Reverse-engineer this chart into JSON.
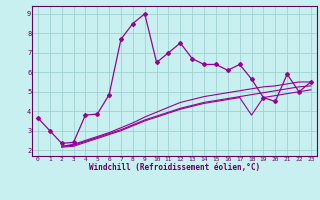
{
  "xlabel": "Windchill (Refroidissement éolien,°C)",
  "bg_color": "#c8f0f0",
  "line_color": "#990099",
  "grid_color": "#99cccc",
  "axis_color": "#660066",
  "spine_color": "#660066",
  "xlim": [
    -0.5,
    23.5
  ],
  "ylim": [
    1.7,
    9.4
  ],
  "yticks": [
    2,
    3,
    4,
    5,
    6,
    7,
    8,
    9
  ],
  "xticks": [
    0,
    1,
    2,
    3,
    4,
    5,
    6,
    7,
    8,
    9,
    10,
    11,
    12,
    13,
    14,
    15,
    16,
    17,
    18,
    19,
    20,
    21,
    22,
    23
  ],
  "line1_x": [
    0,
    1,
    2,
    3,
    4,
    5,
    6,
    7,
    8,
    9,
    10,
    11,
    12,
    13,
    14,
    15,
    16,
    17,
    18,
    19,
    20,
    21,
    22,
    23
  ],
  "line1_y": [
    3.65,
    3.0,
    2.35,
    2.4,
    3.8,
    3.85,
    4.85,
    7.7,
    8.5,
    9.0,
    6.5,
    7.0,
    7.5,
    6.7,
    6.4,
    6.4,
    6.1,
    6.4,
    5.65,
    4.7,
    4.5,
    5.9,
    5.0,
    5.5
  ],
  "line2_x": [
    2,
    3,
    4,
    5,
    6,
    7,
    8,
    9,
    10,
    11,
    12,
    13,
    14,
    15,
    16,
    17,
    18,
    19,
    20,
    21,
    22,
    23
  ],
  "line2_y": [
    2.2,
    2.3,
    2.5,
    2.7,
    2.9,
    3.15,
    3.4,
    3.7,
    3.95,
    4.2,
    4.45,
    4.6,
    4.75,
    4.85,
    4.95,
    5.05,
    5.15,
    5.25,
    5.3,
    5.4,
    5.5,
    5.5
  ],
  "line3_x": [
    2,
    3,
    4,
    5,
    6,
    7,
    8,
    9,
    10,
    11,
    12,
    13,
    14,
    15,
    16,
    17,
    18,
    19,
    20,
    21,
    22,
    23
  ],
  "line3_y": [
    2.2,
    2.25,
    2.45,
    2.65,
    2.85,
    3.05,
    3.3,
    3.55,
    3.75,
    3.95,
    4.15,
    4.3,
    4.45,
    4.55,
    4.65,
    4.75,
    4.85,
    4.95,
    5.05,
    5.15,
    5.25,
    5.3
  ],
  "line4_x": [
    2,
    3,
    4,
    5,
    6,
    7,
    8,
    9,
    10,
    11,
    12,
    13,
    14,
    15,
    16,
    17,
    18,
    19,
    20,
    21,
    22,
    23
  ],
  "line4_y": [
    2.15,
    2.2,
    2.4,
    2.6,
    2.8,
    3.0,
    3.25,
    3.5,
    3.7,
    3.9,
    4.1,
    4.25,
    4.4,
    4.5,
    4.6,
    4.7,
    3.8,
    4.7,
    4.8,
    4.9,
    5.0,
    5.1
  ]
}
